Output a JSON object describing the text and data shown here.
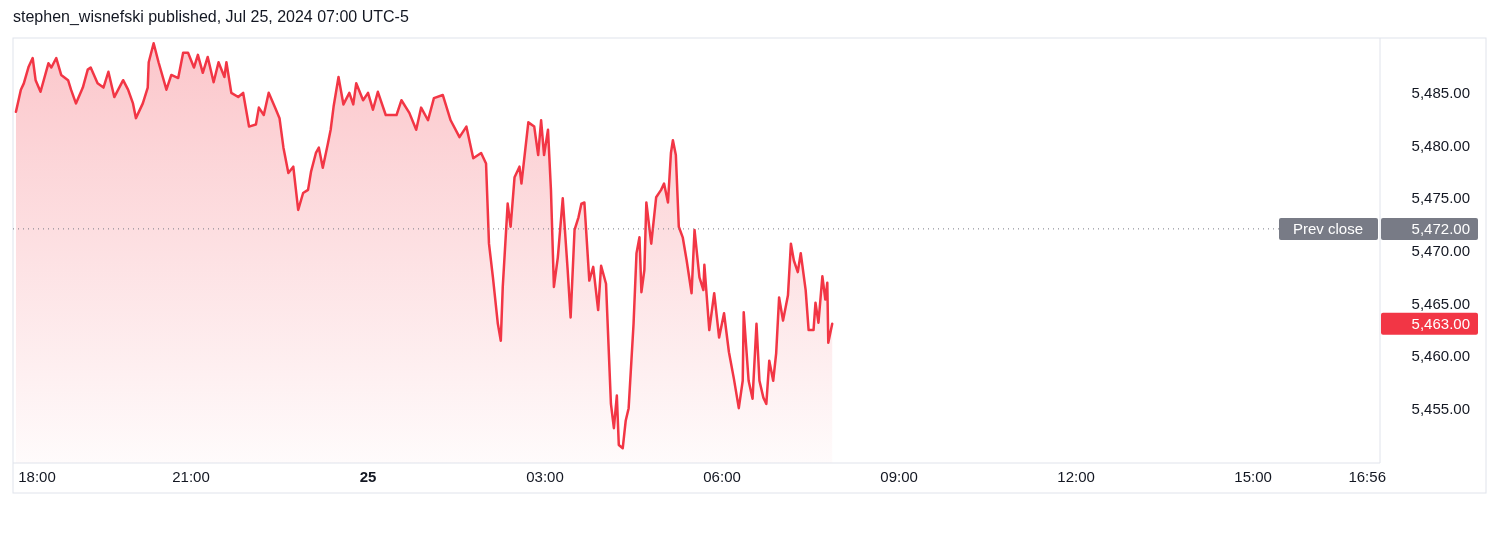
{
  "chart_data": {
    "type": "area",
    "title": "stephen_wisnefski published, Jul 25, 2024 07:00 UTC-5",
    "xlim": [
      "2024-07-24T17:59",
      "2024-07-25T17:09"
    ],
    "xticks": [
      {
        "value": "2024-07-24T18:00",
        "label": "18:00"
      },
      {
        "value": "2024-07-24T21:00",
        "label": "21:00"
      },
      {
        "value": "2024-07-25T00:00",
        "label": "25"
      },
      {
        "value": "2024-07-25T03:00",
        "label": "03:00"
      },
      {
        "value": "2024-07-25T06:00",
        "label": "06:00"
      },
      {
        "value": "2024-07-25T09:00",
        "label": "09:00"
      },
      {
        "value": "2024-07-25T12:00",
        "label": "12:00"
      },
      {
        "value": "2024-07-25T15:00",
        "label": "15:00"
      },
      {
        "value": "2024-07-25T16:56",
        "label": "16:56"
      }
    ],
    "ylim": [
      5449.8,
      5490.1
    ],
    "yticks": [
      {
        "value": 5455,
        "label": "5,455.00"
      },
      {
        "value": 5460,
        "label": "5,460.00"
      },
      {
        "value": 5465,
        "label": "5,465.00"
      },
      {
        "value": 5470,
        "label": "5,470.00"
      },
      {
        "value": 5475,
        "label": "5,475.00"
      },
      {
        "value": 5480,
        "label": "5,480.00"
      },
      {
        "value": 5485,
        "label": "5,485.00"
      }
    ],
    "grid": false,
    "ref_lines": [
      {
        "axis": "y",
        "value": 5472,
        "label": "Prev close",
        "color": "#787b86",
        "line_style": "dotted"
      }
    ],
    "annotations": [
      "5,472.00",
      "5,463.00"
    ],
    "x": [
      "2024-07-24T18:02",
      "2024-07-24T18:07",
      "2024-07-24T18:10",
      "2024-07-24T18:15",
      "2024-07-24T18:19",
      "2024-07-24T18:22",
      "2024-07-24T18:27",
      "2024-07-24T18:35",
      "2024-07-24T18:38",
      "2024-07-24T18:43",
      "2024-07-24T18:48",
      "2024-07-24T18:55",
      "2024-07-24T18:58",
      "2024-07-24T19:03",
      "2024-07-24T19:10",
      "2024-07-24T19:15",
      "2024-07-24T19:18",
      "2024-07-24T19:25",
      "2024-07-24T19:31",
      "2024-07-24T19:36",
      "2024-07-24T19:42",
      "2024-07-24T19:51",
      "2024-07-24T19:56",
      "2024-07-24T20:01",
      "2024-07-24T20:04",
      "2024-07-24T20:11",
      "2024-07-24T20:16",
      "2024-07-24T20:17",
      "2024-07-24T20:22",
      "2024-07-24T20:27",
      "2024-07-24T20:35",
      "2024-07-24T20:40",
      "2024-07-24T20:47",
      "2024-07-24T20:52",
      "2024-07-24T20:57",
      "2024-07-24T21:03",
      "2024-07-24T21:07",
      "2024-07-24T21:12",
      "2024-07-24T21:17",
      "2024-07-24T21:23",
      "2024-07-24T21:28",
      "2024-07-24T21:34",
      "2024-07-24T21:36",
      "2024-07-24T21:41",
      "2024-07-24T21:48",
      "2024-07-24T21:53",
      "2024-07-24T21:59",
      "2024-07-24T22:06",
      "2024-07-24T22:09",
      "2024-07-24T22:14",
      "2024-07-24T22:19",
      "2024-07-24T22:26",
      "2024-07-24T22:30",
      "2024-07-24T22:34",
      "2024-07-24T22:39",
      "2024-07-24T22:44",
      "2024-07-24T22:49",
      "2024-07-24T22:54",
      "2024-07-24T22:59",
      "2024-07-24T23:02",
      "2024-07-24T23:07",
      "2024-07-24T23:10",
      "2024-07-24T23:14",
      "2024-07-24T23:19",
      "2024-07-24T23:22",
      "2024-07-24T23:25",
      "2024-07-24T23:30",
      "2024-07-24T23:35",
      "2024-07-24T23:41",
      "2024-07-24T23:45",
      "2024-07-24T23:48",
      "2024-07-24T23:55",
      "2024-07-25T00:00",
      "2024-07-25T00:05",
      "2024-07-25T00:10",
      "2024-07-25T00:18",
      "2024-07-25T00:29",
      "2024-07-25T00:34",
      "2024-07-25T00:42",
      "2024-07-25T00:49",
      "2024-07-25T00:54",
      "2024-07-25T01:01",
      "2024-07-25T01:07",
      "2024-07-25T01:16",
      "2024-07-25T01:24",
      "2024-07-25T01:33",
      "2024-07-25T01:40",
      "2024-07-25T01:47",
      "2024-07-25T01:55",
      "2024-07-25T02:00",
      "2024-07-25T02:03",
      "2024-07-25T02:07",
      "2024-07-25T02:12",
      "2024-07-25T02:15",
      "2024-07-25T02:17",
      "2024-07-25T02:22",
      "2024-07-25T02:25",
      "2024-07-25T02:29",
      "2024-07-25T02:34",
      "2024-07-25T02:36",
      "2024-07-25T02:43",
      "2024-07-25T02:49",
      "2024-07-25T02:53",
      "2024-07-25T02:56",
      "2024-07-25T02:59",
      "2024-07-25T03:03",
      "2024-07-25T03:06",
      "2024-07-25T03:09",
      "2024-07-25T03:13",
      "2024-07-25T03:18",
      "2024-07-25T03:23",
      "2024-07-25T03:26",
      "2024-07-25T03:30",
      "2024-07-25T03:34",
      "2024-07-25T03:37",
      "2024-07-25T03:40",
      "2024-07-25T03:45",
      "2024-07-25T03:49",
      "2024-07-25T03:54",
      "2024-07-25T03:57",
      "2024-07-25T04:02",
      "2024-07-25T04:07",
      "2024-07-25T04:10",
      "2024-07-25T04:13",
      "2024-07-25T04:15",
      "2024-07-25T04:19",
      "2024-07-25T04:22",
      "2024-07-25T04:25",
      "2024-07-25T04:30",
      "2024-07-25T04:33",
      "2024-07-25T04:36",
      "2024-07-25T04:38",
      "2024-07-25T04:41",
      "2024-07-25T04:43",
      "2024-07-25T04:48",
      "2024-07-25T04:53",
      "2024-07-25T04:58",
      "2024-07-25T05:01",
      "2024-07-25T05:05",
      "2024-07-25T05:08",
      "2024-07-25T05:10",
      "2024-07-25T05:13",
      "2024-07-25T05:16",
      "2024-07-25T05:20",
      "2024-07-25T05:24",
      "2024-07-25T05:29",
      "2024-07-25T05:32",
      "2024-07-25T05:37",
      "2024-07-25T05:41",
      "2024-07-25T05:42",
      "2024-07-25T05:47",
      "2024-07-25T05:52",
      "2024-07-25T05:57",
      "2024-07-25T06:02",
      "2024-07-25T06:07",
      "2024-07-25T06:12",
      "2024-07-25T06:17",
      "2024-07-25T06:21",
      "2024-07-25T06:22",
      "2024-07-25T06:27",
      "2024-07-25T06:31",
      "2024-07-25T06:35",
      "2024-07-25T06:38",
      "2024-07-25T06:42",
      "2024-07-25T06:45",
      "2024-07-25T06:48",
      "2024-07-25T06:52",
      "2024-07-25T06:55",
      "2024-07-25T06:58",
      "2024-07-25T07:02",
      "2024-07-25T07:07",
      "2024-07-25T07:10",
      "2024-07-25T07:13",
      "2024-07-25T07:17",
      "2024-07-25T07:20",
      "2024-07-25T07:25",
      "2024-07-25T07:28",
      "2024-07-25T07:33",
      "2024-07-25T07:35",
      "2024-07-25T07:38",
      "2024-07-25T07:42",
      "2024-07-25T07:45",
      "2024-07-25T07:47",
      "2024-07-25T07:48",
      "2024-07-25T07:52"
    ],
    "series": [
      {
        "color": "#f23645",
        "values": [
          5483.1,
          5485.2,
          5485.8,
          5487.4,
          5488.2,
          5486.1,
          5485.0,
          5487.7,
          5487.3,
          5488.2,
          5486.6,
          5486.1,
          5485.2,
          5483.9,
          5485.4,
          5487.1,
          5487.3,
          5485.8,
          5485.4,
          5486.9,
          5484.5,
          5486.1,
          5485.2,
          5483.9,
          5482.5,
          5483.9,
          5485.4,
          5487.8,
          5489.6,
          5487.8,
          5485.2,
          5486.6,
          5486.3,
          5488.7,
          5488.7,
          5487.3,
          5488.5,
          5486.8,
          5488.3,
          5485.9,
          5487.8,
          5486.4,
          5487.8,
          5484.9,
          5484.5,
          5484.9,
          5481.7,
          5481.9,
          5483.5,
          5482.8,
          5484.9,
          5483.4,
          5482.5,
          5479.7,
          5477.3,
          5477.9,
          5473.8,
          5475.4,
          5475.7,
          5477.4,
          5479.2,
          5479.7,
          5477.8,
          5480.0,
          5481.4,
          5483.6,
          5486.4,
          5483.8,
          5484.9,
          5483.8,
          5485.8,
          5484.2,
          5484.9,
          5483.3,
          5485.0,
          5482.8,
          5482.8,
          5484.2,
          5483.0,
          5481.4,
          5483.5,
          5482.3,
          5484.4,
          5484.7,
          5482.3,
          5480.7,
          5481.7,
          5478.7,
          5479.2,
          5478.2,
          5470.6,
          5467.4,
          5463.0,
          5461.4,
          5466.5,
          5474.4,
          5472.2,
          5476.9,
          5477.9,
          5476.3,
          5482.1,
          5481.7,
          5479.0,
          5482.3,
          5479.0,
          5481.4,
          5475.7,
          5466.5,
          5469.3,
          5474.9,
          5468.1,
          5463.6,
          5471.9,
          5473.1,
          5474.4,
          5474.5,
          5467.1,
          5468.4,
          5464.3,
          5468.5,
          5466.8,
          5455.4,
          5453.1,
          5456.2,
          5451.5,
          5451.2,
          5453.8,
          5455.0,
          5463.0,
          5469.7,
          5471.2,
          5466.0,
          5468.1,
          5474.5,
          5470.6,
          5475.0,
          5475.7,
          5476.3,
          5474.5,
          5479.2,
          5480.4,
          5479.0,
          5472.2,
          5471.2,
          5469.0,
          5465.9,
          5471.9,
          5467.4,
          5466.2,
          5468.6,
          5462.4,
          5465.9,
          5461.7,
          5464.0,
          5460.3,
          5457.8,
          5455.0,
          5457.6,
          5464.1,
          5457.6,
          5455.9,
          5463.0,
          5457.6,
          5456.0,
          5455.4,
          5459.5,
          5457.6,
          5460.2,
          5465.5,
          5463.3,
          5465.7,
          5470.6,
          5469.0,
          5467.9,
          5469.7,
          5466.2,
          5462.4,
          5462.4,
          5465.0,
          5463.1,
          5467.5,
          5465.3,
          5466.9,
          5461.2,
          5463.0
        ]
      }
    ]
  }
}
